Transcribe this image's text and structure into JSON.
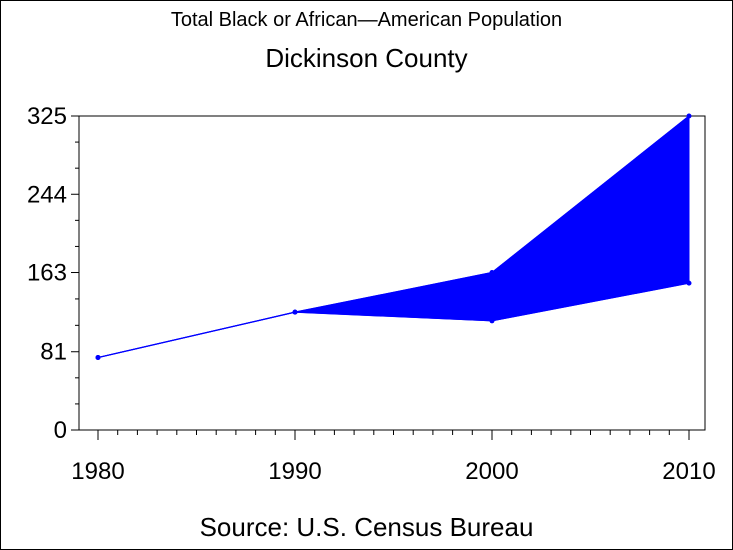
{
  "chart_data": {
    "type": "area",
    "title": "Total Black or African—American Population",
    "subtitle": "Dickinson County",
    "source": "Source: U.S. Census Bureau",
    "x": [
      1980,
      1990,
      2000,
      2010
    ],
    "lower": [
      75,
      122,
      113,
      152
    ],
    "upper": [
      75,
      122,
      163,
      325
    ],
    "x_ticks": [
      "1980",
      "1990",
      "2000",
      "2010"
    ],
    "y_ticks": [
      "0",
      "81",
      "163",
      "244",
      "325"
    ],
    "y_tick_values": [
      0,
      81,
      163,
      244,
      325
    ],
    "ylim": [
      0,
      325
    ],
    "xlim": [
      1980,
      2010
    ],
    "color": "#0000ff",
    "grid": false
  }
}
